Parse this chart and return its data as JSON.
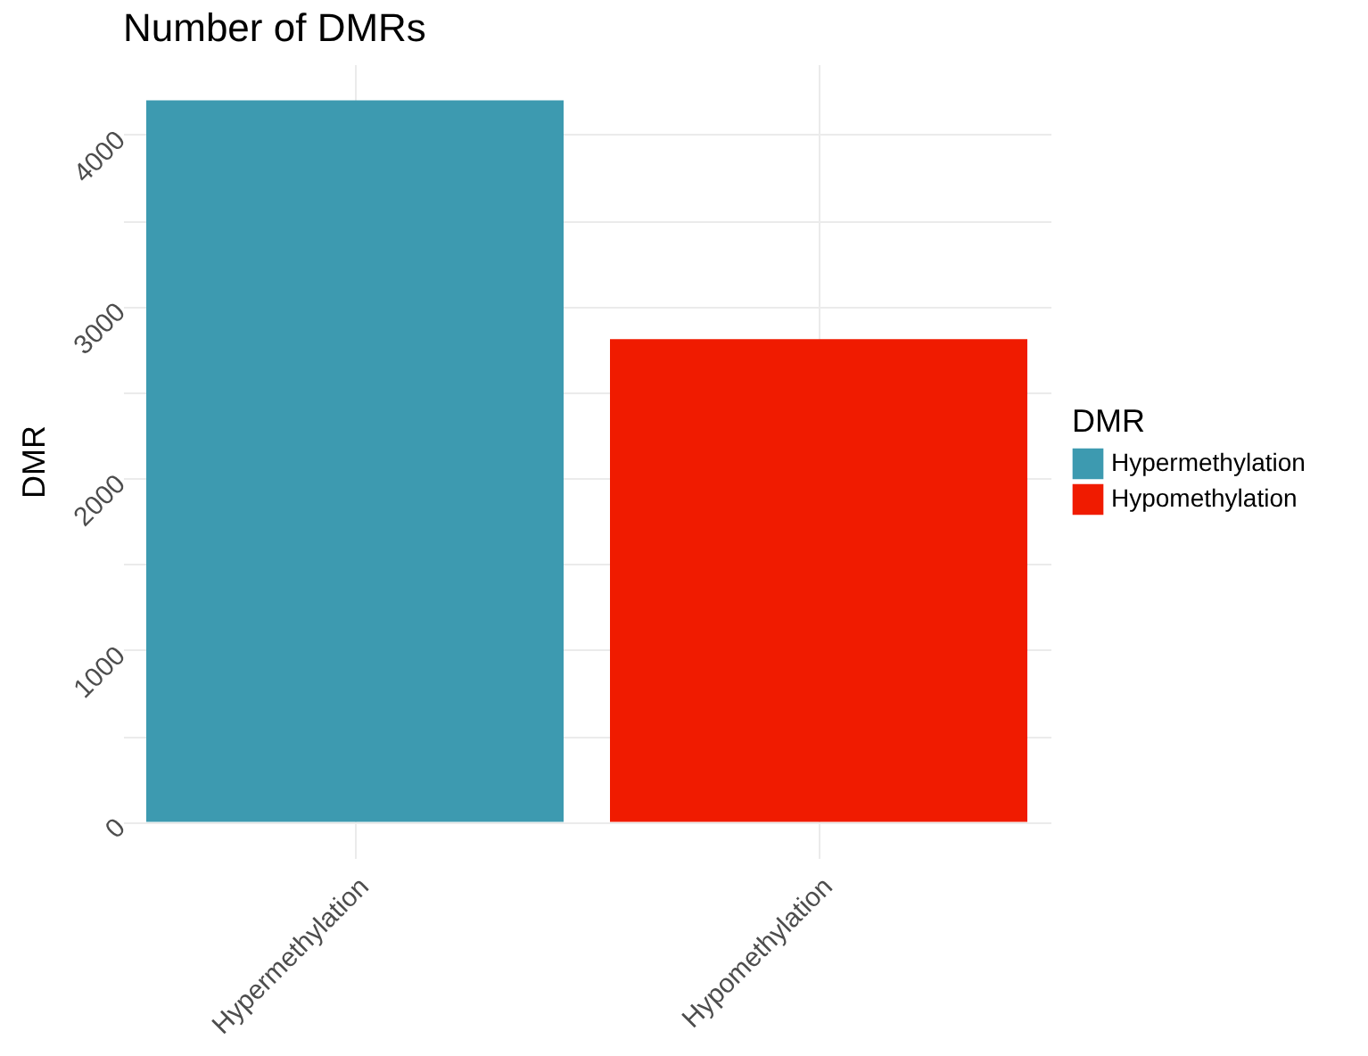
{
  "chart_data": {
    "type": "bar",
    "title": "Number of DMRs",
    "ylabel": "DMR",
    "legend_title": "DMR",
    "categories": [
      "Hypermethylation",
      "Hypomethylation"
    ],
    "series": [
      {
        "name": "Hypermethylation",
        "color": "#3d9ab0",
        "values": [
          4200,
          null
        ]
      },
      {
        "name": "Hypomethylation",
        "color": "#f01b00",
        "values": [
          null,
          2810
        ]
      }
    ],
    "ylim": [
      -210,
      4410
    ],
    "yticks": [
      0,
      {
        "value": 500,
        "label": null
      },
      1000,
      {
        "value": 1500,
        "label": null
      },
      2000,
      {
        "value": 2500,
        "label": null
      },
      3000,
      {
        "value": 3500,
        "label": null
      },
      4000
    ],
    "grid": true,
    "legend": "right"
  }
}
